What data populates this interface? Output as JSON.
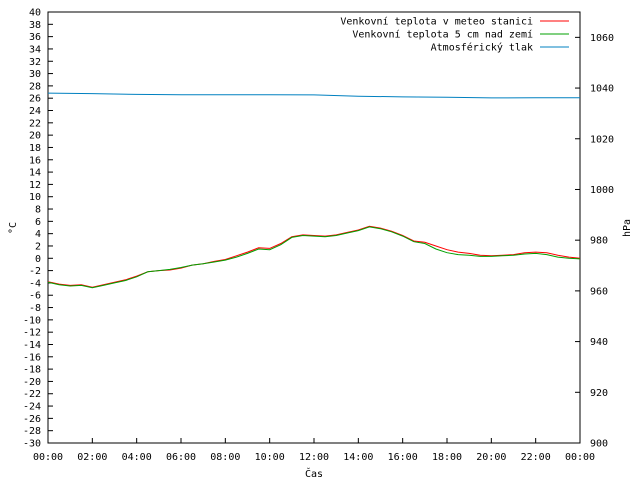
{
  "chart_data": {
    "type": "line",
    "xlabel": "Čas",
    "ylabel_left": "°C",
    "ylabel_right": "hPa",
    "x_ticks": [
      "00:00",
      "02:00",
      "04:00",
      "06:00",
      "08:00",
      "10:00",
      "12:00",
      "14:00",
      "16:00",
      "18:00",
      "20:00",
      "22:00",
      "00:00"
    ],
    "x_range_hours": [
      0,
      24
    ],
    "y_left": {
      "min": -30,
      "max": 40,
      "step": 2
    },
    "y_right": {
      "min": 900,
      "max": 1070,
      "step": 20
    },
    "grid": false,
    "legend_position": "top-right",
    "series": [
      {
        "name": "Venkovní teplota v meteo stanici",
        "axis": "left",
        "color": "#ff0000",
        "x_hours": [
          0,
          0.5,
          1,
          1.5,
          2,
          2.5,
          3,
          3.5,
          4,
          4.5,
          5,
          5.5,
          6,
          6.5,
          7,
          7.5,
          8,
          8.5,
          9,
          9.5,
          10,
          10.5,
          11,
          11.5,
          12,
          12.5,
          13,
          13.5,
          14,
          14.5,
          15,
          15.5,
          16,
          16.5,
          17,
          17.5,
          18,
          18.5,
          19,
          19.5,
          20,
          20.5,
          21,
          21.5,
          22,
          22.5,
          23,
          23.5,
          24
        ],
        "values": [
          -3.8,
          -4.2,
          -4.4,
          -4.3,
          -4.7,
          -4.3,
          -3.9,
          -3.5,
          -2.9,
          -2.2,
          -2.0,
          -1.9,
          -1.6,
          -1.1,
          -0.9,
          -0.5,
          -0.2,
          0.4,
          1.0,
          1.7,
          1.6,
          2.4,
          3.5,
          3.8,
          3.7,
          3.6,
          3.8,
          4.2,
          4.6,
          5.2,
          4.9,
          4.4,
          3.7,
          2.8,
          2.6,
          2.0,
          1.4,
          1.0,
          0.8,
          0.5,
          0.4,
          0.5,
          0.6,
          0.9,
          1.0,
          0.9,
          0.5,
          0.2,
          0.0
        ]
      },
      {
        "name": "Venkovní teplota 5 cm nad zemí",
        "axis": "left",
        "color": "#00a000",
        "x_hours": [
          0,
          0.5,
          1,
          1.5,
          2,
          2.5,
          3,
          3.5,
          4,
          4.5,
          5,
          5.5,
          6,
          6.5,
          7,
          7.5,
          8,
          8.5,
          9,
          9.5,
          10,
          10.5,
          11,
          11.5,
          12,
          12.5,
          13,
          13.5,
          14,
          14.5,
          15,
          15.5,
          16,
          16.5,
          17,
          17.5,
          18,
          18.5,
          19,
          19.5,
          20,
          20.5,
          21,
          21.5,
          22,
          22.5,
          23,
          23.5,
          24
        ],
        "values": [
          -3.9,
          -4.3,
          -4.5,
          -4.4,
          -4.8,
          -4.4,
          -4.0,
          -3.6,
          -3.0,
          -2.2,
          -2.0,
          -1.8,
          -1.5,
          -1.1,
          -0.9,
          -0.6,
          -0.3,
          0.2,
          0.8,
          1.5,
          1.4,
          2.2,
          3.4,
          3.7,
          3.6,
          3.5,
          3.7,
          4.1,
          4.5,
          5.1,
          4.8,
          4.3,
          3.6,
          2.7,
          2.4,
          1.5,
          0.9,
          0.6,
          0.5,
          0.3,
          0.3,
          0.4,
          0.5,
          0.7,
          0.8,
          0.6,
          0.2,
          0.0,
          -0.1
        ]
      },
      {
        "name": "Atmosférický tlak",
        "axis": "right",
        "color": "#0080c0",
        "x_hours": [
          0,
          2,
          4,
          6,
          8,
          10,
          12,
          14,
          16,
          18,
          20,
          22,
          24
        ],
        "values": [
          1038.0,
          1037.8,
          1037.5,
          1037.4,
          1037.4,
          1037.4,
          1037.3,
          1036.8,
          1036.5,
          1036.4,
          1036.1,
          1036.2,
          1036.2
        ]
      }
    ]
  }
}
